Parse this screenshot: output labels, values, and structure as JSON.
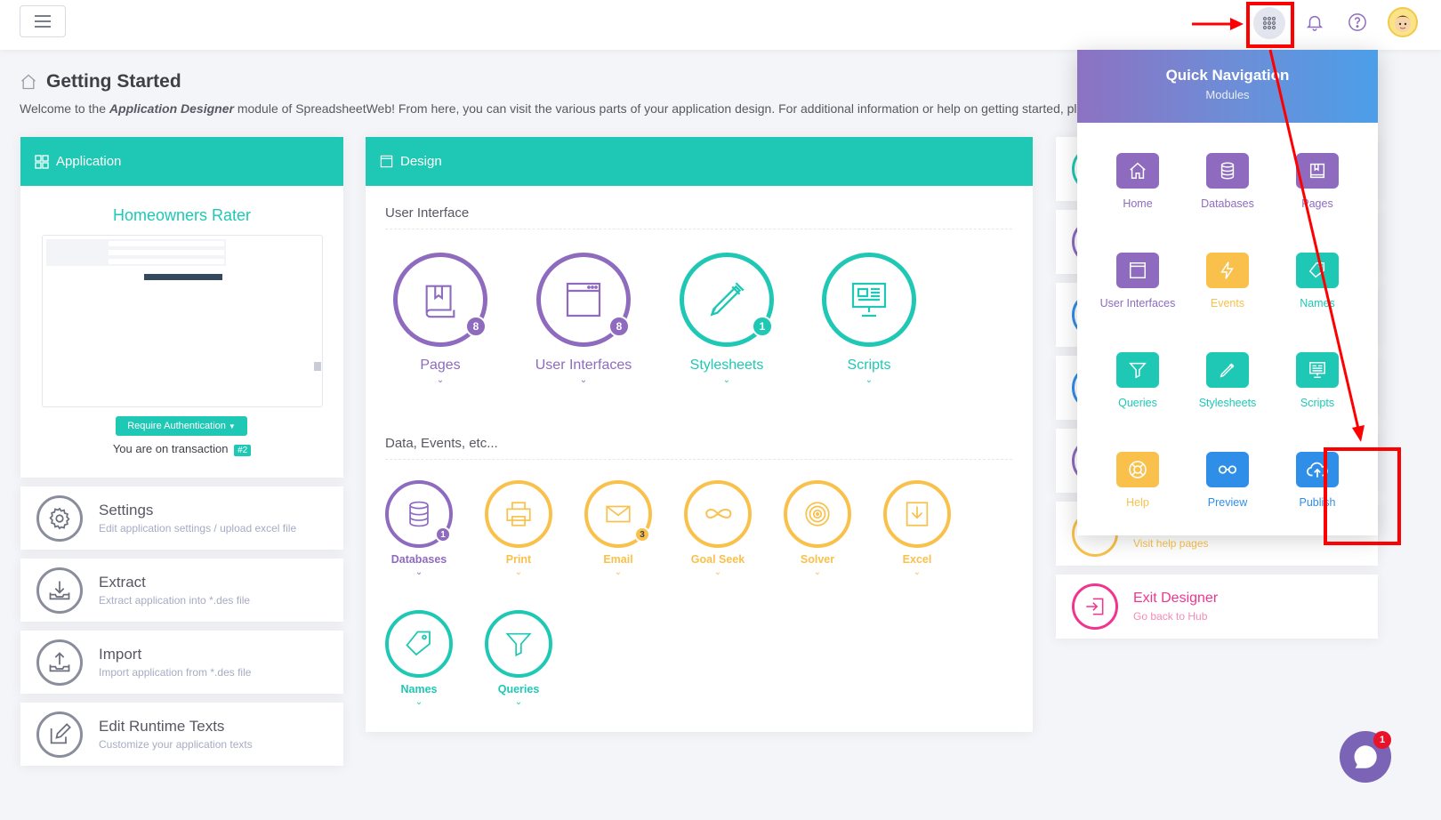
{
  "page": {
    "title": "Getting Started",
    "welcome_prefix": "Welcome to the ",
    "welcome_module": "Application Designer",
    "welcome_suffix": " module of SpreadsheetWeb! From here, you can visit the various parts of your application design. For additional information or help on getting started, please"
  },
  "application": {
    "header": "Application",
    "app_name": "Homeowners Rater",
    "auth_button": "Require Authentication",
    "transaction_prefix": "You are on transaction",
    "transaction_badge": "#2"
  },
  "tools": [
    {
      "title": "Settings",
      "subtitle": "Edit application settings / upload excel file"
    },
    {
      "title": "Extract",
      "subtitle": "Extract application into *.des file"
    },
    {
      "title": "Import",
      "subtitle": "Import application from *.des file"
    },
    {
      "title": "Edit Runtime Texts",
      "subtitle": "Customize your application texts"
    }
  ],
  "design": {
    "header": "Design",
    "ui_section": "User Interface",
    "data_section": "Data, Events, etc...",
    "ui_items": [
      {
        "label": "Pages",
        "badge": "8",
        "color": "#8e6bbf"
      },
      {
        "label": "User Interfaces",
        "badge": "8",
        "color": "#8e6bbf"
      },
      {
        "label": "Stylesheets",
        "badge": "1",
        "color": "#1fc8b4"
      },
      {
        "label": "Scripts",
        "badge": "",
        "color": "#1fc8b4"
      }
    ],
    "data_items": [
      {
        "label": "Databases",
        "badge": "1",
        "color": "#8e6bbf"
      },
      {
        "label": "Print",
        "badge": "",
        "color": "#f9c14b"
      },
      {
        "label": "Email",
        "badge": "3",
        "color": "#f9c14b"
      },
      {
        "label": "Goal Seek",
        "badge": "",
        "color": "#f9c14b"
      },
      {
        "label": "Solver",
        "badge": "",
        "color": "#f9c14b"
      },
      {
        "label": "Excel",
        "badge": "",
        "color": "#f9c14b"
      },
      {
        "label": "Names",
        "badge": "",
        "color": "#1fc8b4"
      },
      {
        "label": "Queries",
        "badge": "",
        "color": "#1fc8b4"
      }
    ]
  },
  "right_cards": {
    "help_sub": "Visit help pages",
    "exit_title": "Exit Designer",
    "exit_sub": "Go back to Hub"
  },
  "quick_nav": {
    "title": "Quick Navigation",
    "subtitle": "Modules",
    "items": [
      {
        "label": "Home",
        "icon": "home-icon",
        "color": "#8e6bbf"
      },
      {
        "label": "Databases",
        "icon": "database-icon",
        "color": "#8e6bbf"
      },
      {
        "label": "Pages",
        "icon": "book-icon",
        "color": "#8e6bbf"
      },
      {
        "label": "User Interfaces",
        "icon": "window-icon",
        "color": "#8e6bbf"
      },
      {
        "label": "Events",
        "icon": "bolt-icon",
        "color": "#f9c14b"
      },
      {
        "label": "Names",
        "icon": "tag-icon",
        "color": "#1fc8b4"
      },
      {
        "label": "Queries",
        "icon": "filter-icon",
        "color": "#1fc8b4"
      },
      {
        "label": "Stylesheets",
        "icon": "pen-icon",
        "color": "#1fc8b4"
      },
      {
        "label": "Scripts",
        "icon": "presentation-icon",
        "color": "#1fc8b4"
      },
      {
        "label": "Help",
        "icon": "lifebuoy-icon",
        "color": "#f9c14b"
      },
      {
        "label": "Preview",
        "icon": "glasses-icon",
        "color": "#2f8fe8"
      },
      {
        "label": "Publish",
        "icon": "cloud-upload-icon",
        "color": "#2f8fe8"
      }
    ]
  },
  "chat": {
    "badge": "1"
  }
}
